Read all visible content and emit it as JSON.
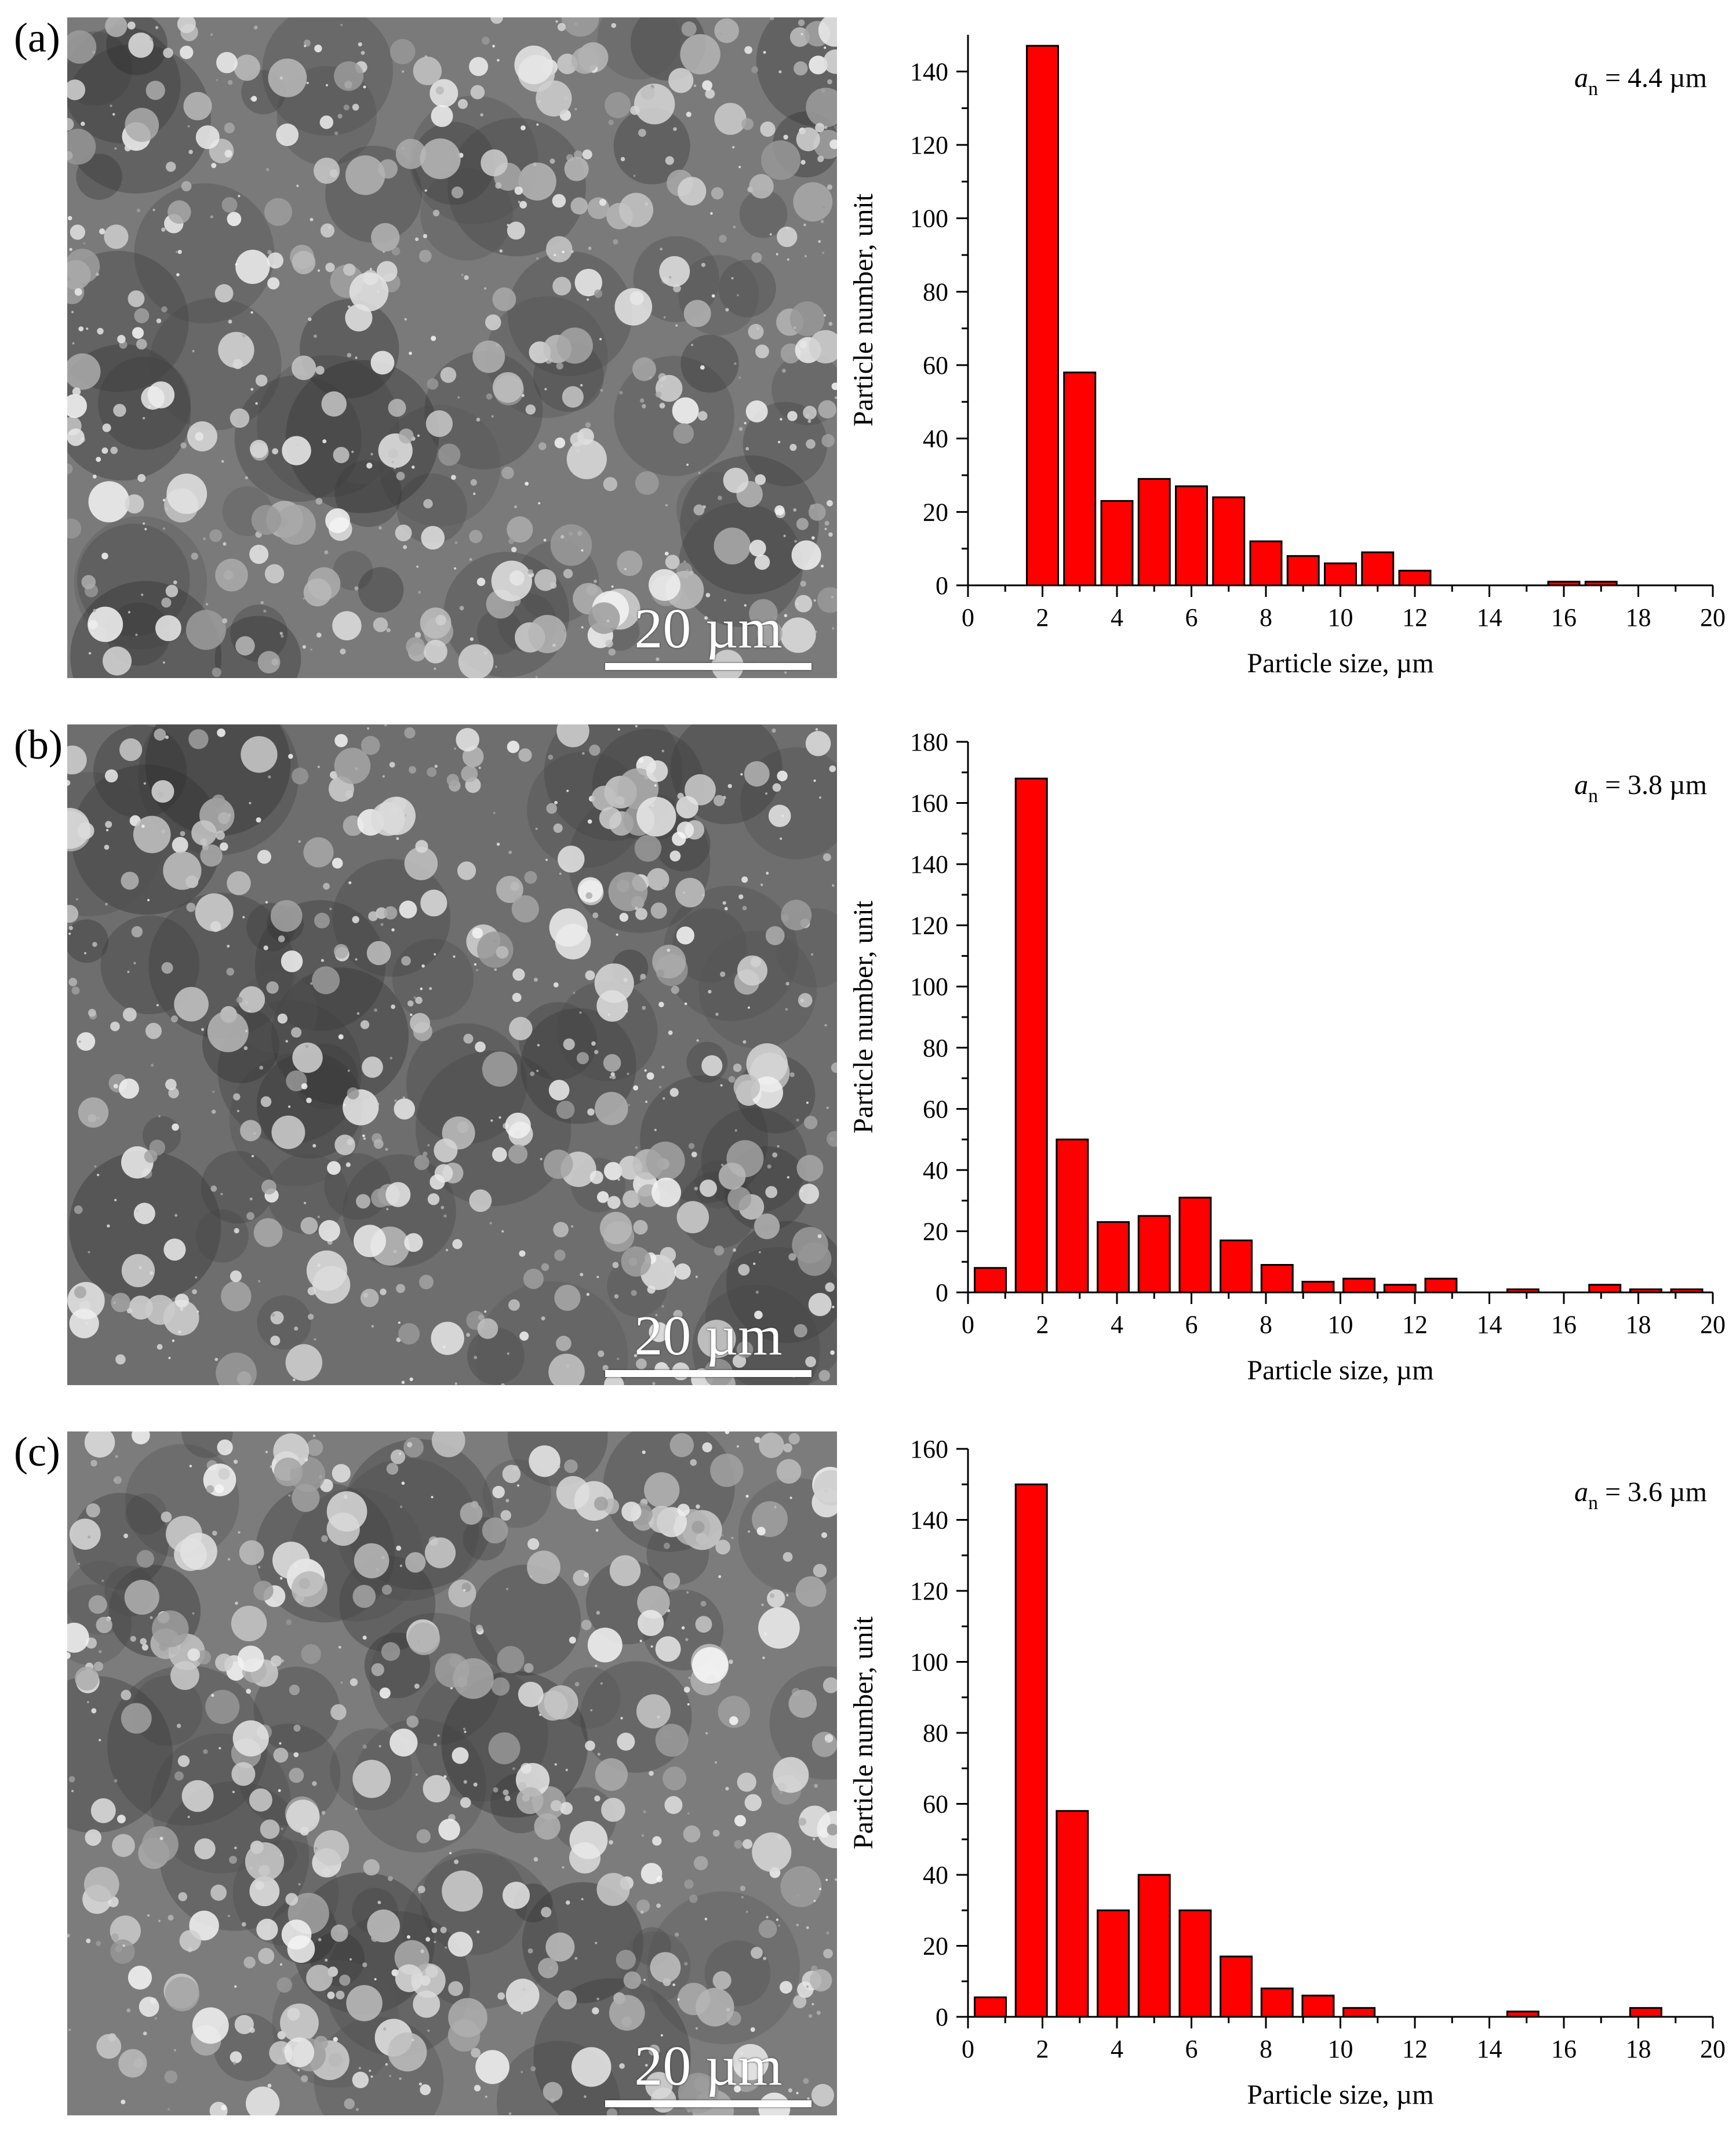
{
  "panels": [
    {
      "letter": "(a)",
      "scale_bar": "20 µm",
      "annotation": {
        "symbol": "a",
        "subscript": "n",
        "value": " = 4.4 µm"
      },
      "chart_data": {
        "type": "bar",
        "xlabel": "Particle size, µm",
        "ylabel": "Particle number, unit",
        "xlim": [
          0,
          20
        ],
        "ylim": [
          0,
          150
        ],
        "xticks": [
          0,
          2,
          4,
          6,
          8,
          10,
          12,
          14,
          16,
          18,
          20
        ],
        "yticks": [
          0,
          20,
          40,
          60,
          80,
          100,
          120,
          140
        ],
        "bar_color": "#ff0000",
        "x": [
          2,
          3,
          4,
          5,
          6,
          7,
          8,
          9,
          10,
          11,
          12,
          13,
          14,
          15,
          16,
          17,
          18,
          19
        ],
        "values": [
          147,
          58,
          23,
          29,
          27,
          24,
          12,
          8,
          6,
          9,
          4,
          0,
          0,
          0,
          1,
          1,
          0,
          0
        ]
      }
    },
    {
      "letter": "(b)",
      "scale_bar": "20 µm",
      "annotation": {
        "symbol": "a",
        "subscript": "n",
        "value": " = 3.8 µm"
      },
      "chart_data": {
        "type": "bar",
        "xlabel": "Particle size, µm",
        "ylabel": "Particle number, unit",
        "xlim": [
          0,
          20
        ],
        "ylim": [
          0,
          180
        ],
        "xticks": [
          0,
          2,
          4,
          6,
          8,
          10,
          12,
          14,
          16,
          18,
          20
        ],
        "yticks": [
          0,
          20,
          40,
          60,
          80,
          100,
          120,
          140,
          160,
          180
        ],
        "bar_color": "#ff0000",
        "x": [
          0.6,
          1.7,
          2.8,
          3.9,
          5,
          6.1,
          7.2,
          8.3,
          9.4,
          10.5,
          11.6,
          12.7,
          13.8,
          14.9,
          16,
          17.1,
          18.2,
          19.3
        ],
        "values": [
          8,
          168,
          50,
          23,
          25,
          31,
          17,
          9,
          3.5,
          4.5,
          2.5,
          4.5,
          0,
          1,
          0,
          2.5,
          1,
          1
        ]
      }
    },
    {
      "letter": "(c)",
      "scale_bar": "20 µm",
      "annotation": {
        "symbol": "a",
        "subscript": "n",
        "value": " = 3.6 µm"
      },
      "chart_data": {
        "type": "bar",
        "xlabel": "Particle size, µm",
        "ylabel": "Particle number, unit",
        "xlim": [
          0,
          20
        ],
        "ylim": [
          0,
          160
        ],
        "xticks": [
          0,
          2,
          4,
          6,
          8,
          10,
          12,
          14,
          16,
          18,
          20
        ],
        "yticks": [
          0,
          20,
          40,
          60,
          80,
          100,
          120,
          140,
          160
        ],
        "bar_color": "#ff0000",
        "x": [
          0.6,
          1.7,
          2.8,
          3.9,
          5,
          6.1,
          7.2,
          8.3,
          9.4,
          10.5,
          11.6,
          12.7,
          13.8,
          14.9,
          16,
          17.1,
          18.2
        ],
        "values": [
          5.5,
          150,
          58,
          30,
          40,
          30,
          17,
          8,
          6,
          2.5,
          0,
          0,
          0,
          1.5,
          0,
          0,
          2.5
        ]
      }
    }
  ]
}
